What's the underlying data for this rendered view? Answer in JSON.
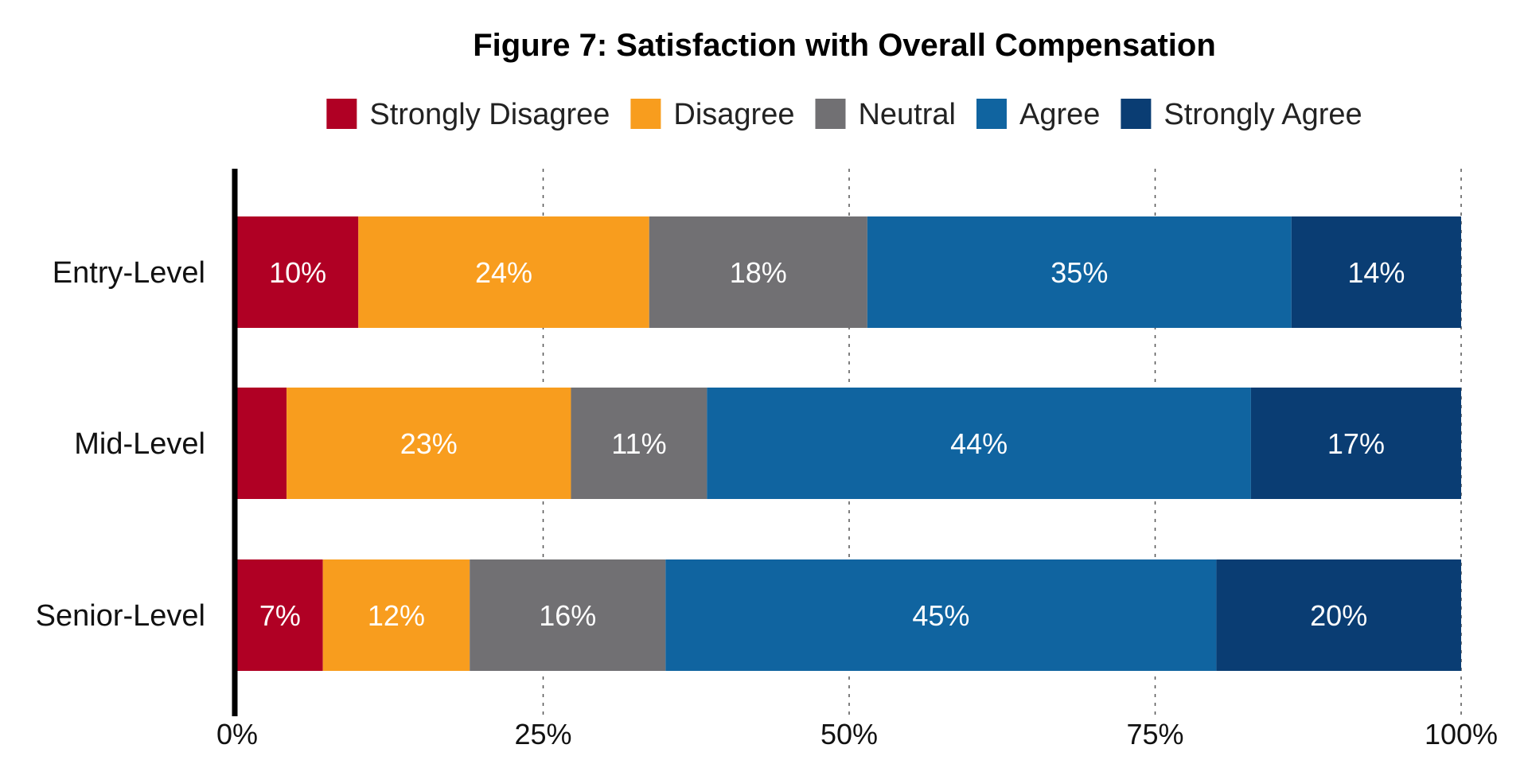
{
  "chart_data": {
    "type": "bar",
    "orientation": "horizontal",
    "stacked": true,
    "title": "Figure 7: Satisfaction with Overall Compensation",
    "categories": [
      "Entry-Level",
      "Mid-Level",
      "Senior-Level"
    ],
    "series": [
      {
        "name": "Strongly Disagree",
        "color": "#B00024",
        "values": [
          10,
          4,
          7
        ],
        "labels": [
          "10%",
          "",
          "7%"
        ]
      },
      {
        "name": "Disagree",
        "color": "#F89D1E",
        "values": [
          24,
          23,
          12
        ],
        "labels": [
          "24%",
          "23%",
          "12%"
        ]
      },
      {
        "name": "Neutral",
        "color": "#717073",
        "values": [
          18,
          11,
          16
        ],
        "labels": [
          "18%",
          "11%",
          "16%"
        ]
      },
      {
        "name": "Agree",
        "color": "#1064A0",
        "values": [
          35,
          44,
          45
        ],
        "labels": [
          "35%",
          "44%",
          "45%"
        ]
      },
      {
        "name": "Strongly Agree",
        "color": "#0A3D73",
        "values": [
          14,
          17,
          20
        ],
        "labels": [
          "14%",
          "17%",
          "20%"
        ]
      }
    ],
    "xlim": [
      0,
      100
    ],
    "xticks": [
      0,
      25,
      50,
      75,
      100
    ],
    "xtick_labels": [
      "0%",
      "25%",
      "50%",
      "75%",
      "100%"
    ],
    "grid": "vertical dashed",
    "legend": "top-center"
  }
}
